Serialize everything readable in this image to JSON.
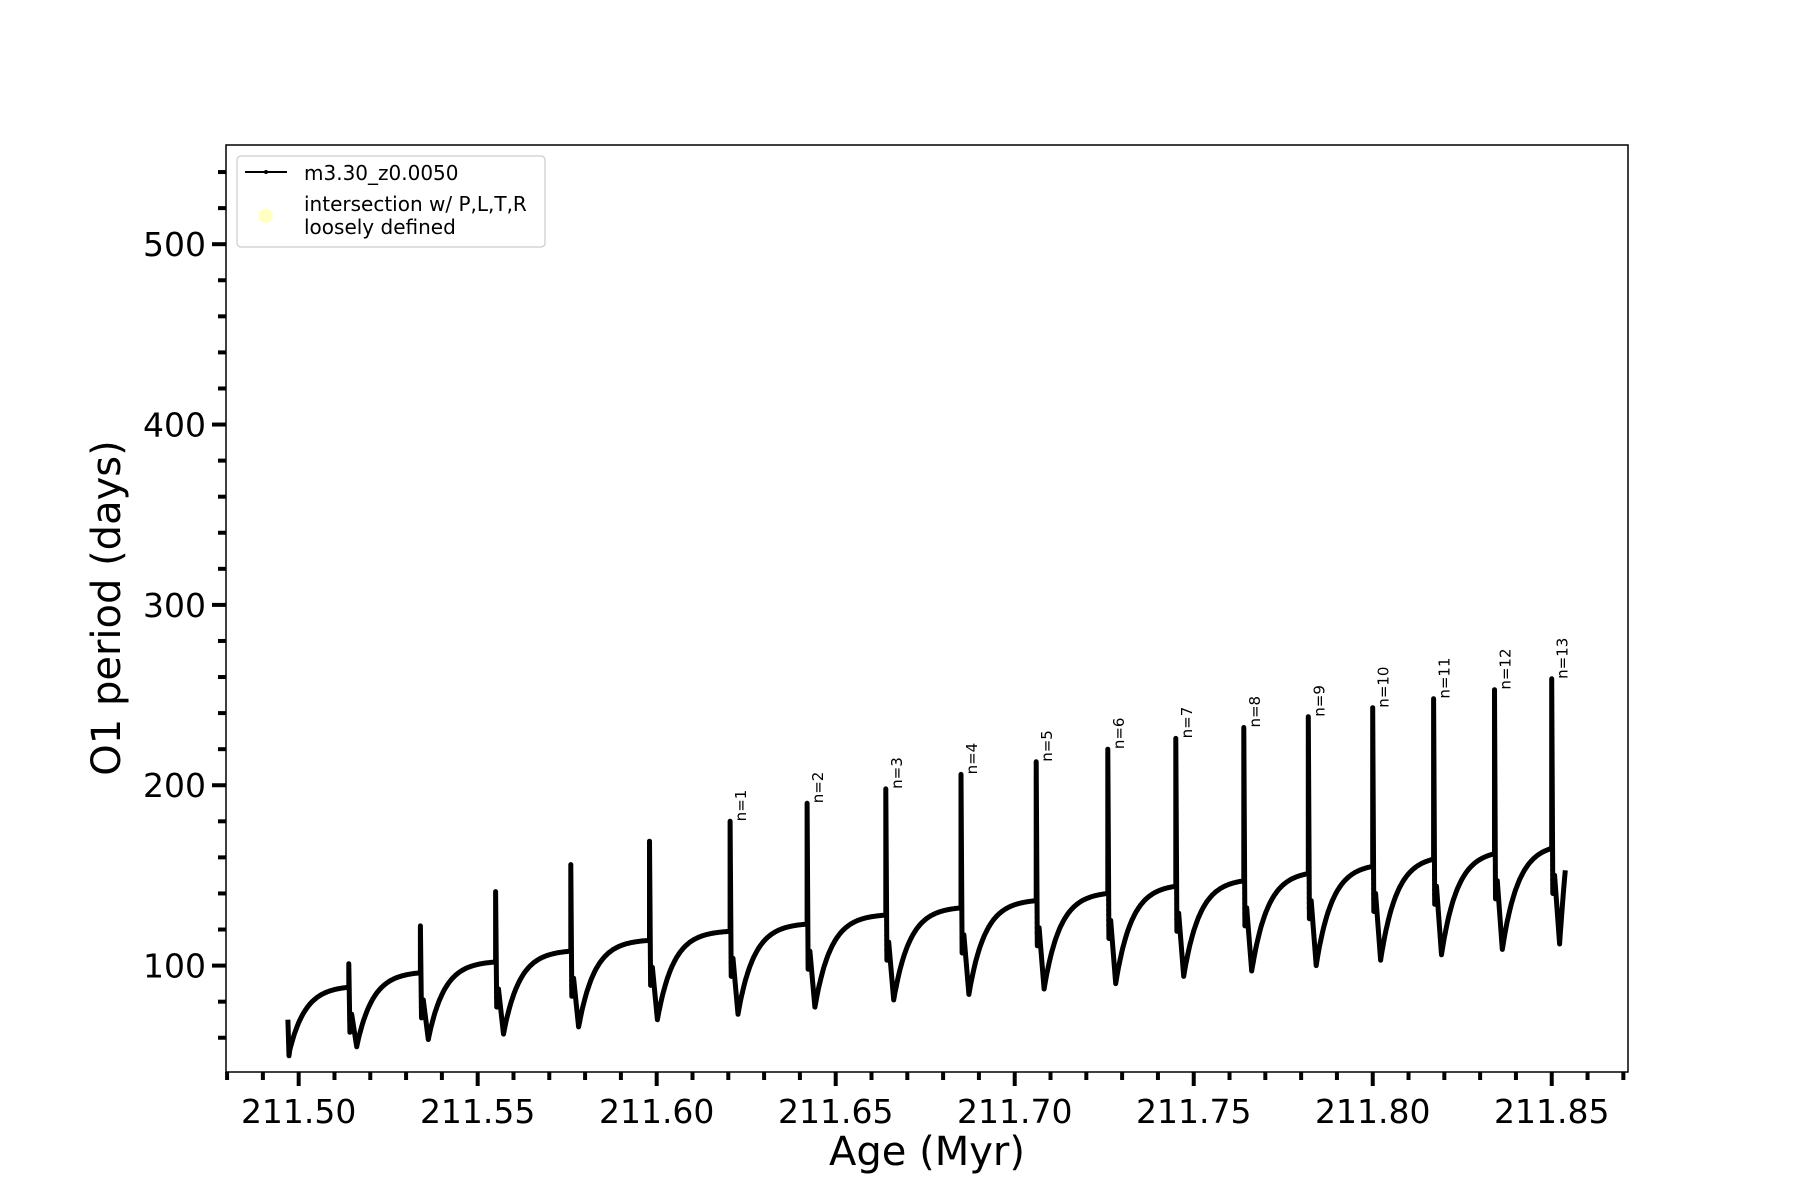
{
  "chart_data": {
    "type": "line",
    "xlabel": "Age (Myr)",
    "ylabel": "O1 period (days)",
    "xlim": [
      211.4797,
      211.8713
    ],
    "ylim": [
      41,
      555
    ],
    "xticks": [
      "211.50",
      "211.55",
      "211.60",
      "211.65",
      "211.70",
      "211.75",
      "211.80",
      "211.85"
    ],
    "xtick_values": [
      211.5,
      211.55,
      211.6,
      211.65,
      211.7,
      211.75,
      211.8,
      211.85
    ],
    "yticks": [
      "100",
      "200",
      "300",
      "400",
      "500"
    ],
    "ytick_values": [
      100,
      200,
      300,
      400,
      500
    ],
    "x_minor_step": 0.01,
    "y_minor_step": 20,
    "grid": false,
    "legend_position": "top-left",
    "legend": [
      {
        "label": "m3.30_z0.0050",
        "marker": "line-dot",
        "color": "#000000"
      },
      {
        "label": "intersection w/ P,L,T,R\nloosely defined",
        "label_lines": [
          "intersection w/ P,L,T,R",
          "loosely defined"
        ],
        "marker": "circle",
        "color": "#ffffc0"
      }
    ],
    "series": [
      {
        "name": "m3.30_z0.0050",
        "color": "#000000",
        "start": {
          "age": 211.497,
          "period": 70,
          "min": 50
        },
        "end": {
          "age": 211.854,
          "period": 157
        },
        "pulses": [
          {
            "age": 211.514,
            "plateau": 88,
            "peak": 101,
            "min_after": 55,
            "label": ""
          },
          {
            "age": 211.534,
            "plateau": 96,
            "peak": 122,
            "min_after": 59,
            "label": ""
          },
          {
            "age": 211.555,
            "plateau": 102,
            "peak": 141,
            "min_after": 62,
            "label": ""
          },
          {
            "age": 211.576,
            "plateau": 108,
            "peak": 156,
            "min_after": 66,
            "label": ""
          },
          {
            "age": 211.598,
            "plateau": 114,
            "peak": 169,
            "min_after": 70,
            "label": ""
          },
          {
            "age": 211.6205,
            "plateau": 119,
            "peak": 180,
            "min_after": 73,
            "label": "n=1"
          },
          {
            "age": 211.642,
            "plateau": 123,
            "peak": 190,
            "min_after": 77,
            "label": "n=2"
          },
          {
            "age": 211.664,
            "plateau": 128,
            "peak": 198,
            "min_after": 81,
            "label": "n=3"
          },
          {
            "age": 211.685,
            "plateau": 132,
            "peak": 206,
            "min_after": 84,
            "label": "n=4"
          },
          {
            "age": 211.706,
            "plateau": 136,
            "peak": 213,
            "min_after": 87,
            "label": "n=5"
          },
          {
            "age": 211.726,
            "plateau": 140,
            "peak": 220,
            "min_after": 90,
            "label": "n=6"
          },
          {
            "age": 211.745,
            "plateau": 144,
            "peak": 226,
            "min_after": 94,
            "label": "n=7"
          },
          {
            "age": 211.764,
            "plateau": 147,
            "peak": 232,
            "min_after": 97,
            "label": "n=8"
          },
          {
            "age": 211.782,
            "plateau": 151,
            "peak": 238,
            "min_after": 100,
            "label": "n=9"
          },
          {
            "age": 211.8,
            "plateau": 155,
            "peak": 243,
            "min_after": 103,
            "label": "n=10"
          },
          {
            "age": 211.817,
            "plateau": 159,
            "peak": 248,
            "min_after": 106,
            "label": "n=11"
          },
          {
            "age": 211.834,
            "plateau": 162,
            "peak": 253,
            "min_after": 109,
            "label": "n=12"
          },
          {
            "age": 211.85,
            "plateau": 165,
            "peak": 259,
            "min_after": 112,
            "label": "n=13"
          }
        ]
      }
    ]
  }
}
